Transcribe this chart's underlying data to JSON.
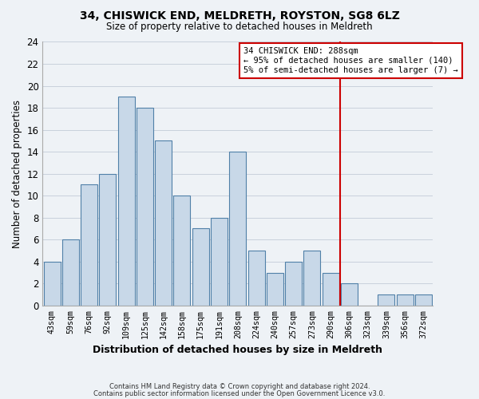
{
  "title": "34, CHISWICK END, MELDRETH, ROYSTON, SG8 6LZ",
  "subtitle": "Size of property relative to detached houses in Meldreth",
  "xlabel": "Distribution of detached houses by size in Meldreth",
  "ylabel": "Number of detached properties",
  "bar_labels": [
    "43sqm",
    "59sqm",
    "76sqm",
    "92sqm",
    "109sqm",
    "125sqm",
    "142sqm",
    "158sqm",
    "175sqm",
    "191sqm",
    "208sqm",
    "224sqm",
    "240sqm",
    "257sqm",
    "273sqm",
    "290sqm",
    "306sqm",
    "323sqm",
    "339sqm",
    "356sqm",
    "372sqm"
  ],
  "bar_values": [
    4,
    6,
    11,
    12,
    19,
    18,
    15,
    10,
    7,
    8,
    14,
    5,
    3,
    4,
    5,
    3,
    2,
    0,
    1,
    1,
    1
  ],
  "bar_color": "#c8d8e8",
  "bar_edge_color": "#5080a8",
  "grid_color": "#c8d0dc",
  "background_color": "#eef2f6",
  "plot_bg_color": "#eef2f6",
  "vline_x_index": 15.5,
  "vline_color": "#cc0000",
  "annotation_line1": "34 CHISWICK END: 288sqm",
  "annotation_line2": "← 95% of detached houses are smaller (140)",
  "annotation_line3": "5% of semi-detached houses are larger (7) →",
  "annotation_box_color": "#ffffff",
  "annotation_box_edge": "#cc0000",
  "ylim": [
    0,
    24
  ],
  "yticks": [
    0,
    2,
    4,
    6,
    8,
    10,
    12,
    14,
    16,
    18,
    20,
    22,
    24
  ],
  "footer_line1": "Contains HM Land Registry data © Crown copyright and database right 2024.",
  "footer_line2": "Contains public sector information licensed under the Open Government Licence v3.0."
}
